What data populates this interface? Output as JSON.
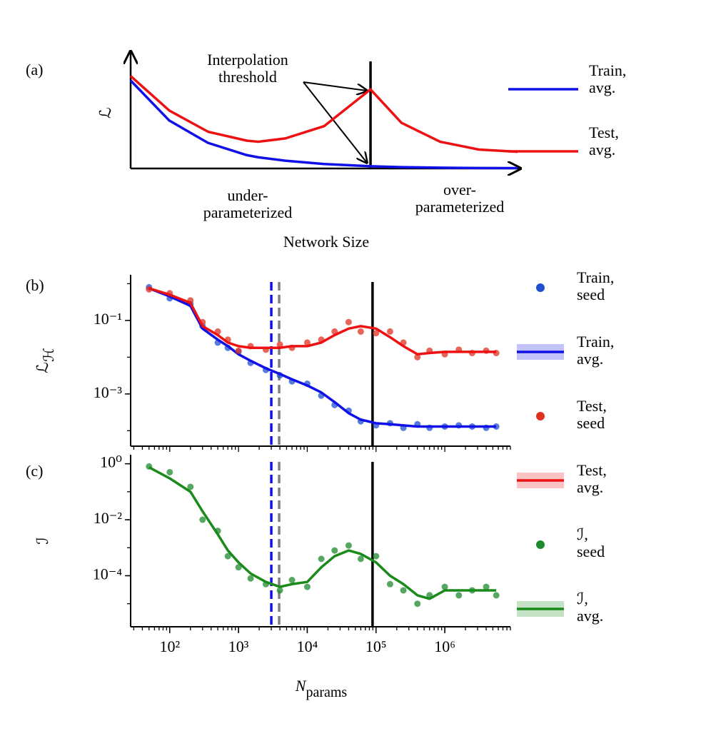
{
  "chart_data": [
    {
      "type": "line",
      "panel": "(a)",
      "ylabel": "ℒ",
      "xlabel": "Network Size",
      "annotations": [
        "Interpolation\nthreshold",
        "under-\nparameterized",
        "over-\nparameterized"
      ],
      "x": [
        0,
        1,
        2,
        3,
        3.3,
        4,
        5,
        6.2,
        7,
        8,
        9,
        10
      ],
      "xlim": [
        0,
        10
      ],
      "ylim": [
        0,
        1
      ],
      "vlines": [
        {
          "value": 6.2,
          "color": "#000000",
          "style": "solid"
        }
      ],
      "series": [
        {
          "name": "Train,\navg.",
          "color": "#1010e8",
          "mode": "lines",
          "values": [
            0.79,
            0.43,
            0.23,
            0.12,
            0.1,
            0.07,
            0.04,
            0.02,
            0.012,
            0.007,
            0.004,
            0.003
          ]
        },
        {
          "name": "Test,\navg.",
          "color": "#ee1111",
          "mode": "lines",
          "values": [
            0.83,
            0.52,
            0.33,
            0.25,
            0.24,
            0.27,
            0.38,
            0.71,
            0.41,
            0.24,
            0.17,
            0.15
          ]
        }
      ]
    },
    {
      "type": "scatter",
      "panel": "(b)",
      "ylabel": "ℒ",
      "ylabel_sub": "ℋ",
      "xscale": "log",
      "yscale": "log",
      "xlim": [
        27,
        9000000
      ],
      "ylim": [
        3.8e-05,
        1.74
      ],
      "yticks": [
        {
          "value": 0.1,
          "label": "10⁻¹"
        },
        {
          "value": 0.001,
          "label": "10⁻³"
        }
      ],
      "vlines": [
        {
          "value": 3000,
          "color": "#1010e8",
          "style": "dashed"
        },
        {
          "value": 3900,
          "color": "#808080",
          "style": "dashed"
        },
        {
          "value": 89000,
          "color": "#000000",
          "style": "solid"
        }
      ],
      "x": [
        50,
        100,
        200,
        300,
        500,
        700,
        1000,
        1500,
        2500,
        4000,
        6000,
        10000,
        16000,
        25000,
        40000,
        60000,
        100000,
        160000,
        250000,
        400000,
        600000,
        1000000,
        1600000,
        2500000,
        4000000,
        5600000
      ],
      "series": [
        {
          "name": "Train,\nseed",
          "color": "#1f4fd0",
          "mode": "markers",
          "values": [
            0.8,
            0.4,
            0.28,
            0.07,
            0.025,
            0.018,
            0.014,
            0.007,
            0.0045,
            0.0032,
            0.0022,
            0.0019,
            0.0009,
            0.0005,
            0.00035,
            0.00018,
            0.00014,
            0.00016,
            0.00012,
            0.00015,
            0.00012,
            0.00013,
            0.00014,
            0.00013,
            0.00012,
            0.00013
          ]
        },
        {
          "name": "Train,\navg.",
          "color": "#1010e8",
          "mode": "lines",
          "values": [
            0.75,
            0.45,
            0.25,
            0.06,
            0.03,
            0.02,
            0.012,
            0.008,
            0.005,
            0.0035,
            0.0025,
            0.0017,
            0.0011,
            0.0006,
            0.0003,
            0.0002,
            0.00016,
            0.00015,
            0.00014,
            0.00013,
            0.00013,
            0.00013,
            0.00013,
            0.00013,
            0.00013,
            0.00013
          ]
        },
        {
          "name": "Test,\nseed",
          "color": "#e03020",
          "mode": "markers",
          "values": [
            0.7,
            0.55,
            0.35,
            0.09,
            0.05,
            0.03,
            0.015,
            0.02,
            0.016,
            0.022,
            0.018,
            0.025,
            0.03,
            0.05,
            0.09,
            0.05,
            0.045,
            0.05,
            0.025,
            0.01,
            0.015,
            0.012,
            0.016,
            0.013,
            0.015,
            0.013
          ]
        },
        {
          "name": "Test,\navg.",
          "color": "#ee1111",
          "mode": "lines",
          "values": [
            0.75,
            0.5,
            0.3,
            0.07,
            0.04,
            0.025,
            0.02,
            0.018,
            0.018,
            0.018,
            0.02,
            0.02,
            0.025,
            0.04,
            0.06,
            0.07,
            0.06,
            0.035,
            0.02,
            0.012,
            0.013,
            0.014,
            0.014,
            0.014,
            0.014,
            0.014
          ]
        }
      ]
    },
    {
      "type": "scatter",
      "panel": "(c)",
      "ylabel": "ℐ",
      "xlabel": "N",
      "xlabel_sub": "params",
      "xscale": "log",
      "yscale": "log",
      "xlim": [
        27,
        9000000
      ],
      "ylim": [
        1.5e-06,
        2.1
      ],
      "xticks": [
        {
          "value": 100,
          "label": "10²"
        },
        {
          "value": 1000,
          "label": "10³"
        },
        {
          "value": 10000,
          "label": "10⁴"
        },
        {
          "value": 100000,
          "label": "10⁵"
        },
        {
          "value": 1000000,
          "label": "10⁶"
        }
      ],
      "yticks": [
        {
          "value": 1,
          "label": "10⁰"
        },
        {
          "value": 0.01,
          "label": "10⁻²"
        },
        {
          "value": 0.0001,
          "label": "10⁻⁴"
        }
      ],
      "vlines": [
        {
          "value": 3000,
          "color": "#1010e8",
          "style": "dashed"
        },
        {
          "value": 3900,
          "color": "#808080",
          "style": "dashed"
        },
        {
          "value": 89000,
          "color": "#000000",
          "style": "solid"
        }
      ],
      "x": [
        50,
        100,
        200,
        300,
        500,
        700,
        1000,
        1500,
        2500,
        4000,
        6000,
        10000,
        16000,
        25000,
        40000,
        60000,
        100000,
        160000,
        250000,
        400000,
        600000,
        1000000,
        1600000,
        2500000,
        4000000,
        5600000
      ],
      "series": [
        {
          "name": "ℐ,\nseed",
          "color": "#1e8a2e",
          "mode": "markers",
          "values": [
            0.8,
            0.5,
            0.15,
            0.01,
            0.004,
            0.0005,
            0.0002,
            8e-05,
            5e-05,
            3e-05,
            7e-05,
            4e-05,
            0.0004,
            0.0008,
            0.0012,
            0.0004,
            0.0005,
            5e-05,
            3e-05,
            1e-05,
            2e-05,
            4e-05,
            2e-05,
            3e-05,
            4e-05,
            2e-05
          ]
        },
        {
          "name": "ℐ,\navg.",
          "color": "#1a8a1a",
          "mode": "lines",
          "values": [
            0.75,
            0.3,
            0.1,
            0.02,
            0.003,
            0.0008,
            0.0003,
            0.00012,
            6e-05,
            4e-05,
            5e-05,
            6e-05,
            0.0002,
            0.0005,
            0.0008,
            0.0006,
            0.0003,
            0.0001,
            5e-05,
            2e-05,
            1.5e-05,
            3e-05,
            3e-05,
            3e-05,
            3e-05,
            3e-05
          ]
        }
      ]
    }
  ]
}
